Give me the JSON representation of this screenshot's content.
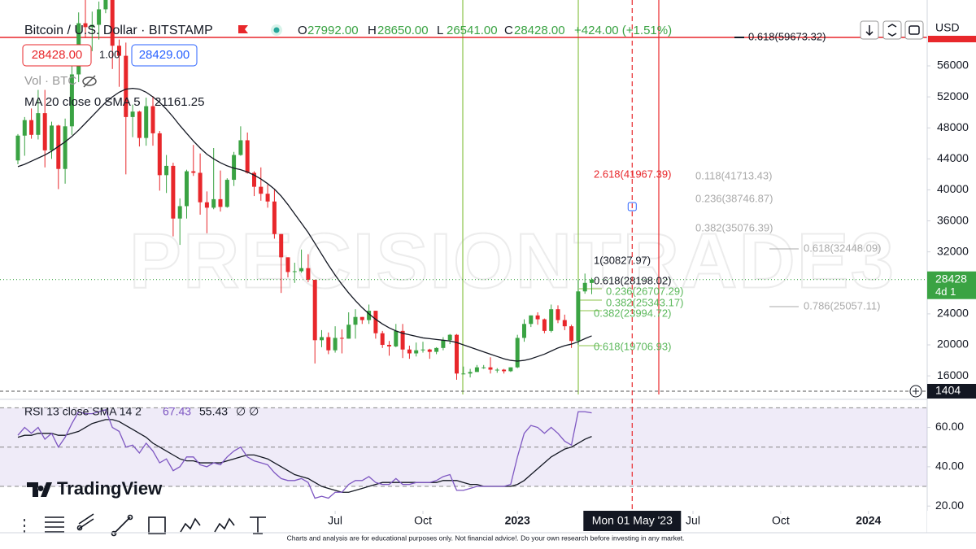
{
  "chart_data": {
    "type": "candlestick",
    "title": "Bitcoin / U.S. Dollar · BITSTAMP",
    "header": {
      "o": "O",
      "open": "27992.00",
      "h": "H",
      "high": "28650.00",
      "l": "L",
      "low": "26541.00",
      "c": "C",
      "close": "28428.00",
      "change": "+424.00 (+1.51%)"
    },
    "sell": "28428.00",
    "spread": "1.00",
    "buy": "28429.00",
    "volume_label": "Vol · BTC",
    "currency": "USD",
    "up_color": "#3aa343",
    "down_color": "#e8272b",
    "candles": {
      "open": [
        43800,
        47000,
        49000,
        47100,
        49900,
        45100,
        48300,
        42700,
        48200,
        54900,
        61500,
        61000,
        61300,
        63300,
        65500,
        58600,
        57300,
        49400,
        50100,
        46700,
        50800,
        47300,
        41900,
        43100,
        36300,
        37900,
        42400,
        42200,
        38400,
        37700,
        38800,
        37800,
        41300,
        44500,
        46400,
        42200,
        40400,
        39500,
        38500,
        34300,
        31300,
        29400,
        29500,
        29900,
        28400,
        20600,
        21000,
        19300,
        20900,
        20800,
        22600,
        23600,
        23200,
        24400,
        21500,
        20000,
        19800,
        21800,
        19400,
        18900,
        19300,
        19400,
        19100,
        19600,
        20600,
        21300,
        16300,
        16300,
        16500,
        17100,
        17100,
        16800,
        16800,
        16600,
        17100,
        20900,
        22700,
        23800,
        23300,
        21800,
        24600,
        23200,
        22400,
        20500,
        26900,
        27992
      ],
      "high": [
        47200,
        49400,
        50500,
        52900,
        52900,
        48800,
        48400,
        49200,
        56000,
        62900,
        67000,
        63000,
        64300,
        69000,
        66300,
        59400,
        59000,
        51000,
        50200,
        51900,
        52100,
        47600,
        44500,
        43500,
        38900,
        42600,
        45800,
        44700,
        39800,
        45400,
        42500,
        41500,
        44900,
        48200,
        47400,
        42400,
        42900,
        40700,
        40000,
        34300,
        31300,
        30600,
        32300,
        31700,
        28400,
        21900,
        21600,
        22400,
        22000,
        24200,
        24600,
        23600,
        25200,
        24400,
        21800,
        20500,
        22700,
        22700,
        19900,
        20300,
        20400,
        19500,
        19700,
        21000,
        21400,
        21400,
        17200,
        16900,
        17400,
        17400,
        18400,
        17000,
        16900,
        17100,
        21300,
        23300,
        23800,
        24200,
        23400,
        25200,
        25100,
        23900,
        22600,
        28400,
        29200,
        28650
      ],
      "low": [
        43300,
        44400,
        46600,
        46500,
        42900,
        44000,
        40100,
        40800,
        47100,
        53900,
        59600,
        57900,
        59400,
        62800,
        55600,
        53300,
        42000,
        46800,
        45600,
        45700,
        45700,
        39900,
        39600,
        34000,
        32900,
        36300,
        41800,
        36800,
        34400,
        37500,
        37200,
        37700,
        40500,
        44400,
        42100,
        39200,
        38600,
        37700,
        33700,
        26700,
        28700,
        28000,
        29300,
        28100,
        17600,
        19700,
        18800,
        19000,
        18900,
        20800,
        20800,
        22700,
        22700,
        20800,
        19600,
        18600,
        19700,
        18300,
        18200,
        18500,
        19000,
        18200,
        18800,
        19300,
        20100,
        15500,
        16200,
        15800,
        16500,
        16900,
        16300,
        16400,
        16300,
        16500,
        17000,
        20400,
        22300,
        22600,
        21500,
        21600,
        22800,
        21900,
        19600,
        20000,
        26600,
        26541
      ],
      "close": [
        47000,
        49000,
        47100,
        49900,
        45100,
        48300,
        42700,
        48200,
        54900,
        61500,
        61000,
        61300,
        63300,
        65500,
        58600,
        57300,
        49400,
        50100,
        46700,
        50800,
        47300,
        41900,
        43100,
        36300,
        37900,
        42400,
        42200,
        38400,
        37700,
        38800,
        37800,
        41300,
        44500,
        46400,
        42200,
        40400,
        39500,
        38500,
        34300,
        31300,
        29400,
        29500,
        29900,
        28400,
        20600,
        21000,
        19300,
        20900,
        20800,
        22600,
        23600,
        23200,
        24400,
        21500,
        20000,
        19800,
        21800,
        19400,
        18900,
        19300,
        19400,
        19100,
        19600,
        20600,
        21300,
        16300,
        16300,
        16500,
        17100,
        17100,
        16800,
        16800,
        16600,
        17100,
        20900,
        22700,
        23800,
        23300,
        21800,
        24600,
        23200,
        22400,
        20500,
        26900,
        28000,
        28428
      ]
    },
    "ma": {
      "name": "MA 20 close 0 SMA 5",
      "color": "#131722",
      "value_label": "21161.25",
      "values": [
        43000,
        43300,
        43700,
        44100,
        44500,
        45000,
        45600,
        46200,
        46900,
        47700,
        48600,
        49500,
        50400,
        51300,
        52000,
        52600,
        53000,
        53100,
        53000,
        52600,
        52000,
        51300,
        50400,
        49400,
        48300,
        47300,
        46300,
        45400,
        44600,
        44000,
        43500,
        43100,
        42800,
        42600,
        42300,
        41900,
        41400,
        40800,
        40100,
        39200,
        38100,
        36900,
        35700,
        34500,
        33100,
        31700,
        30300,
        29000,
        27800,
        26700,
        25700,
        24800,
        24000,
        23300,
        22700,
        22200,
        21800,
        21500,
        21300,
        21100,
        20900,
        20800,
        20700,
        20600,
        20500,
        20300,
        20000,
        19700,
        19400,
        19100,
        18800,
        18500,
        18200,
        18000,
        17900,
        18000,
        18200,
        18500,
        18800,
        19200,
        19600,
        19900,
        20100,
        20400,
        20800,
        21161.25
      ]
    },
    "xlim": [
      -2.65,
      134.7
    ],
    "xticks": [
      {
        "value": 47,
        "label": "Jul"
      },
      {
        "value": 60,
        "label": "Oct"
      },
      {
        "value": 74,
        "label": "2023"
      },
      {
        "value": 100,
        "label": "Jul"
      },
      {
        "value": 113,
        "label": "Oct"
      },
      {
        "value": 126,
        "label": "2024"
      }
    ],
    "ylim": [
      13600,
      64500
    ],
    "yticks": [
      16000,
      20000,
      24000,
      28000,
      32000,
      36000,
      40000,
      44000,
      48000,
      52000,
      56000
    ],
    "grid": false,
    "last_price_label": "28428",
    "countdown_label": "4d 1",
    "crosshair": {
      "x": 91,
      "label": "Mon 01 May '23",
      "price_label": "1404"
    },
    "watermark": "PRECISIONTRADE3",
    "annotations": [
      "0.618(59673.32)",
      "2.618(41967.39)",
      "0.118(41713.43)",
      "0.236(38746.87)",
      "0.382(35076.39)",
      "0.618(32448.09)",
      "1(30827.97)",
      "0.618(28198.02)",
      "0.236(26707.29)",
      "0.382(25343.17)",
      "0.382(23994.72)",
      "0.786(25057.11)",
      "0.618(19706.93)"
    ],
    "rsi": {
      "label": "RSI 13 close SMA 14 2",
      "color": "#7e57c2",
      "value_label": "67.43",
      "flags": "∅ ∅",
      "values": [
        56,
        60,
        57,
        60,
        54,
        57,
        50,
        55,
        62,
        68,
        67,
        67,
        68,
        69,
        60,
        58,
        50,
        51,
        47,
        52,
        48,
        42,
        44,
        38,
        40,
        45,
        45,
        41,
        40,
        42,
        41,
        45,
        48,
        50,
        45,
        43,
        42,
        41,
        37,
        34,
        33,
        33,
        34,
        32,
        24,
        25,
        24,
        27,
        27,
        31,
        33,
        33,
        35,
        32,
        31,
        31,
        34,
        31,
        31,
        32,
        32,
        32,
        33,
        35,
        36,
        28,
        28,
        29,
        30,
        30,
        30,
        30,
        30,
        31,
        45,
        57,
        61,
        60,
        57,
        60,
        57,
        53,
        51,
        68,
        68,
        67.43
      ],
      "sma": {
        "color": "#131722",
        "value_label": "55.43",
        "values": [
          55,
          56,
          56,
          57,
          57,
          57,
          56,
          56,
          57,
          58,
          60,
          62,
          63,
          64,
          64,
          63,
          61,
          59,
          57,
          55,
          52,
          50,
          48,
          46,
          44,
          43,
          43,
          42,
          42,
          42,
          42,
          43,
          44,
          45,
          46,
          46,
          45,
          44,
          42,
          40,
          38,
          36,
          35,
          34,
          32,
          30,
          29,
          28,
          27,
          27,
          28,
          29,
          30,
          31,
          32,
          32,
          32,
          32,
          32,
          32,
          32,
          32,
          32,
          33,
          33,
          33,
          32,
          31,
          31,
          30,
          30,
          30,
          30,
          30,
          31,
          33,
          36,
          39,
          42,
          45,
          47,
          49,
          50,
          52,
          54,
          55.43
        ]
      },
      "ylim": [
        17.6,
        71.4
      ],
      "yticks": [
        {
          "value": 20,
          "label": "20.00"
        },
        {
          "value": 40,
          "label": "40.00"
        },
        {
          "value": 60,
          "label": "60.00"
        }
      ],
      "bands": [
        30,
        50,
        70
      ]
    },
    "logo": "TradingView",
    "disclaimer": "Charts and analysis are for educational purposes only. Not financial advice!. Do your own research before investing in any market."
  }
}
